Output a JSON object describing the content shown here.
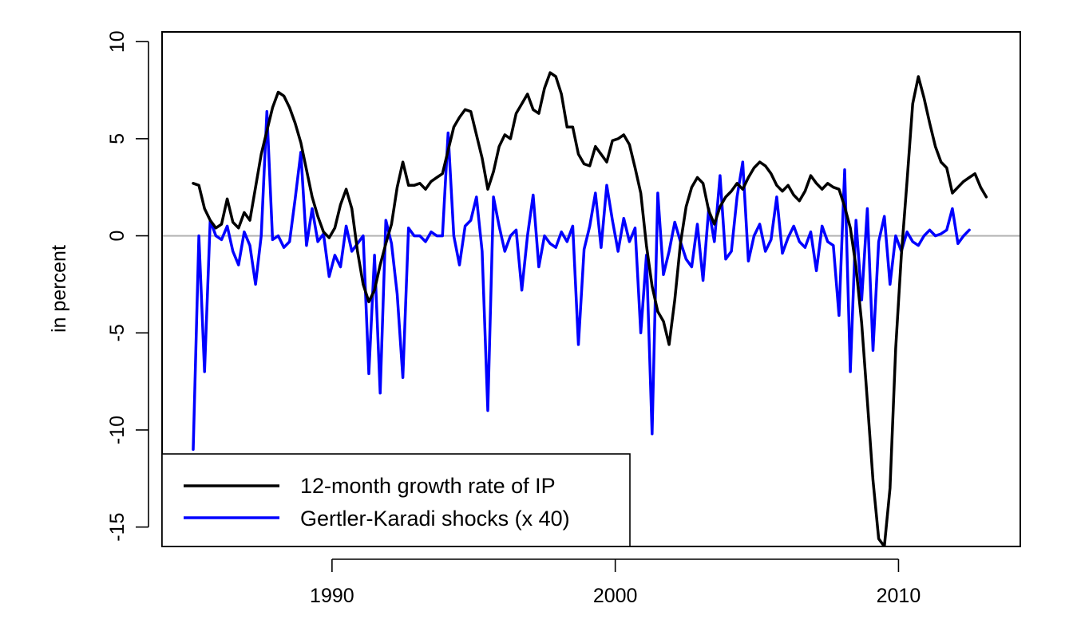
{
  "chart_data": {
    "type": "line",
    "title": "",
    "xlabel": "",
    "ylabel": "in percent",
    "xlim": [
      1984.0,
      2014.3
    ],
    "ylim": [
      -16,
      10.5
    ],
    "x_ticks": [
      1990,
      2000,
      2010
    ],
    "x_tick_labels": [
      "1990",
      "2000",
      "2010"
    ],
    "y_ticks": [
      -15,
      -10,
      -5,
      0,
      5,
      10
    ],
    "y_tick_labels": [
      "-15",
      "-10",
      "-5",
      "0",
      "5",
      "10"
    ],
    "zero_line": true,
    "grid": false,
    "legend_position": "bottom-left",
    "colors": {
      "ip": "#000000",
      "gk": "#0000ff",
      "zero_line": "#b3b3b3"
    },
    "series": [
      {
        "name": "12-month growth rate of IP",
        "color": "#000000",
        "x": [
          1985.1,
          1985.3,
          1985.5,
          1985.7,
          1985.9,
          1986.1,
          1986.3,
          1986.5,
          1986.7,
          1986.9,
          1987.1,
          1987.3,
          1987.5,
          1987.7,
          1987.9,
          1988.1,
          1988.3,
          1988.5,
          1988.7,
          1988.9,
          1989.1,
          1989.3,
          1989.5,
          1989.7,
          1989.9,
          1990.1,
          1990.3,
          1990.5,
          1990.7,
          1990.9,
          1991.1,
          1991.3,
          1991.5,
          1991.7,
          1991.9,
          1992.1,
          1992.3,
          1992.5,
          1992.7,
          1992.9,
          1993.1,
          1993.3,
          1993.5,
          1993.7,
          1993.9,
          1994.1,
          1994.3,
          1994.5,
          1994.7,
          1994.9,
          1995.1,
          1995.3,
          1995.5,
          1995.7,
          1995.9,
          1996.1,
          1996.3,
          1996.5,
          1996.7,
          1996.9,
          1997.1,
          1997.3,
          1997.5,
          1997.7,
          1997.9,
          1998.1,
          1998.3,
          1998.5,
          1998.7,
          1998.9,
          1999.1,
          1999.3,
          1999.5,
          1999.7,
          1999.9,
          2000.1,
          2000.3,
          2000.5,
          2000.7,
          2000.9,
          2001.1,
          2001.3,
          2001.5,
          2001.7,
          2001.9,
          2002.1,
          2002.3,
          2002.5,
          2002.7,
          2002.9,
          2003.1,
          2003.3,
          2003.5,
          2003.7,
          2003.9,
          2004.1,
          2004.3,
          2004.5,
          2004.7,
          2004.9,
          2005.1,
          2005.3,
          2005.5,
          2005.7,
          2005.9,
          2006.1,
          2006.3,
          2006.5,
          2006.7,
          2006.9,
          2007.1,
          2007.3,
          2007.5,
          2007.7,
          2007.9,
          2008.1,
          2008.3,
          2008.5,
          2008.7,
          2008.9,
          2009.1,
          2009.3,
          2009.5,
          2009.7,
          2009.9,
          2010.1,
          2010.3,
          2010.5,
          2010.7,
          2010.9,
          2011.1,
          2011.3,
          2011.5,
          2011.7,
          2011.9,
          2012.1,
          2012.3,
          2012.5,
          2012.7,
          2012.9,
          2013.1
        ],
        "values": [
          2.7,
          2.6,
          1.4,
          0.8,
          0.4,
          0.6,
          1.9,
          0.7,
          0.4,
          1.2,
          0.8,
          2.5,
          4.2,
          5.4,
          6.6,
          7.4,
          7.2,
          6.6,
          5.8,
          4.8,
          3.4,
          2.0,
          1.0,
          0.2,
          -0.1,
          0.4,
          1.6,
          2.4,
          1.4,
          -0.8,
          -2.5,
          -3.4,
          -2.8,
          -1.5,
          -0.4,
          0.6,
          2.5,
          3.8,
          2.6,
          2.6,
          2.7,
          2.4,
          2.8,
          3.0,
          3.2,
          4.4,
          5.6,
          6.1,
          6.5,
          6.4,
          5.2,
          4.0,
          2.4,
          3.3,
          4.6,
          5.2,
          5.0,
          6.3,
          6.8,
          7.3,
          6.5,
          6.3,
          7.6,
          8.4,
          8.2,
          7.3,
          5.6,
          5.6,
          4.2,
          3.7,
          3.6,
          4.6,
          4.2,
          3.8,
          4.9,
          5.0,
          5.2,
          4.7,
          3.5,
          2.2,
          -0.5,
          -2.6,
          -3.9,
          -4.4,
          -5.6,
          -3.3,
          -0.4,
          1.5,
          2.5,
          3.0,
          2.7,
          1.3,
          0.6,
          1.5,
          2.0,
          2.3,
          2.7,
          2.4,
          3.0,
          3.5,
          3.8,
          3.6,
          3.2,
          2.6,
          2.3,
          2.6,
          2.1,
          1.8,
          2.3,
          3.1,
          2.7,
          2.4,
          2.7,
          2.5,
          2.4,
          1.5,
          0.4,
          -1.6,
          -4.5,
          -8.5,
          -12.6,
          -15.6,
          -16.0,
          -13.0,
          -5.8,
          -1.0,
          2.8,
          6.8,
          8.2,
          7.1,
          5.8,
          4.6,
          3.8,
          3.5,
          2.2,
          2.5,
          2.8,
          3.0,
          3.2,
          2.5,
          2.0
        ]
      },
      {
        "name": "Gertler-Karadi shocks (x 40)",
        "color": "#0000ff",
        "x": [
          1985.1,
          1985.3,
          1985.5,
          1985.7,
          1985.9,
          1986.1,
          1986.3,
          1986.5,
          1986.7,
          1986.9,
          1987.1,
          1987.3,
          1987.5,
          1987.7,
          1987.9,
          1988.1,
          1988.3,
          1988.5,
          1988.7,
          1988.9,
          1989.1,
          1989.3,
          1989.5,
          1989.7,
          1989.9,
          1990.1,
          1990.3,
          1990.5,
          1990.7,
          1990.9,
          1991.1,
          1991.3,
          1991.5,
          1991.7,
          1991.9,
          1992.1,
          1992.3,
          1992.5,
          1992.7,
          1992.9,
          1993.1,
          1993.3,
          1993.5,
          1993.7,
          1993.9,
          1994.1,
          1994.3,
          1994.5,
          1994.7,
          1994.9,
          1995.1,
          1995.3,
          1995.5,
          1995.7,
          1995.9,
          1996.1,
          1996.3,
          1996.5,
          1996.7,
          1996.9,
          1997.1,
          1997.3,
          1997.5,
          1997.7,
          1997.9,
          1998.1,
          1998.3,
          1998.5,
          1998.7,
          1998.9,
          1999.1,
          1999.3,
          1999.5,
          1999.7,
          1999.9,
          2000.1,
          2000.3,
          2000.5,
          2000.7,
          2000.9,
          2001.1,
          2001.3,
          2001.5,
          2001.7,
          2001.9,
          2002.1,
          2002.3,
          2002.5,
          2002.7,
          2002.9,
          2003.1,
          2003.3,
          2003.5,
          2003.7,
          2003.9,
          2004.1,
          2004.3,
          2004.5,
          2004.7,
          2004.9,
          2005.1,
          2005.3,
          2005.5,
          2005.7,
          2005.9,
          2006.1,
          2006.3,
          2006.5,
          2006.7,
          2006.9,
          2007.1,
          2007.3,
          2007.5,
          2007.7,
          2007.9,
          2008.1,
          2008.3,
          2008.5,
          2008.7,
          2008.9,
          2009.1,
          2009.3,
          2009.5,
          2009.7,
          2009.9,
          2010.1,
          2010.3,
          2010.5,
          2010.7,
          2010.9,
          2011.1,
          2011.3,
          2011.5,
          2011.7,
          2011.9,
          2012.1,
          2012.3,
          2012.5
        ],
        "values": [
          -11.0,
          0.0,
          -7.0,
          0.8,
          0.0,
          -0.2,
          0.5,
          -0.8,
          -1.5,
          0.2,
          -0.5,
          -2.5,
          0.0,
          6.4,
          -0.2,
          0.0,
          -0.6,
          -0.3,
          1.9,
          4.3,
          -0.5,
          1.4,
          -0.3,
          0.1,
          -2.1,
          -1.0,
          -1.6,
          0.5,
          -0.8,
          -0.4,
          0.0,
          -7.1,
          -1.0,
          -8.1,
          0.8,
          -0.4,
          -3.0,
          -7.3,
          0.4,
          0.0,
          0.0,
          -0.3,
          0.2,
          0.0,
          0.0,
          5.3,
          0.0,
          -1.5,
          0.5,
          0.8,
          2.0,
          -0.8,
          -9.0,
          2.0,
          0.5,
          -0.8,
          0.0,
          0.3,
          -2.8,
          0.0,
          2.1,
          -1.6,
          0.0,
          -0.4,
          -0.6,
          0.2,
          -0.3,
          0.5,
          -5.6,
          -0.7,
          0.5,
          2.2,
          -0.6,
          2.6,
          0.8,
          -0.8,
          0.9,
          -0.3,
          0.4,
          -5.0,
          -1.0,
          -10.2,
          2.2,
          -2.0,
          -0.8,
          0.7,
          -0.3,
          -1.2,
          -1.6,
          0.6,
          -2.3,
          1.4,
          -0.3,
          3.1,
          -1.2,
          -0.8,
          2.0,
          3.8,
          -1.3,
          0.0,
          0.6,
          -0.8,
          -0.2,
          2.0,
          -0.9,
          -0.1,
          0.5,
          -0.3,
          -0.6,
          0.2,
          -1.8,
          0.5,
          -0.3,
          -0.5,
          -4.1,
          3.4,
          -7.0,
          0.8,
          -3.3,
          1.4,
          -5.9,
          -0.3,
          1.0,
          -2.5,
          0.0,
          -0.8,
          0.2,
          -0.3,
          -0.5,
          0.0,
          0.3,
          0.0,
          0.1,
          0.3,
          1.4,
          -0.4,
          0.0,
          0.3
        ]
      }
    ]
  },
  "legend": {
    "items": [
      {
        "label": "12-month growth rate of IP",
        "color": "#000000"
      },
      {
        "label": "Gertler-Karadi shocks (x 40)",
        "color": "#0000ff"
      }
    ]
  }
}
